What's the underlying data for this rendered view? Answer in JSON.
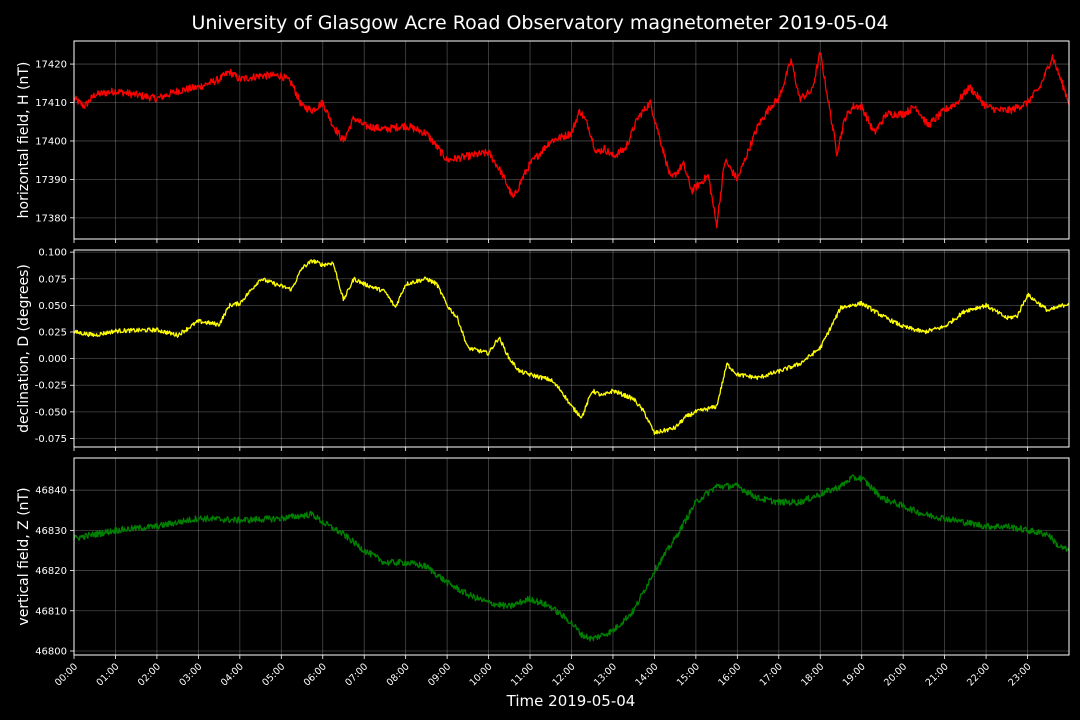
{
  "title": "University of Glasgow Acre Road Observatory magnetometer 2019-05-04",
  "chart_data": [
    {
      "type": "line",
      "ylabel": "horizontal field, H (nT)",
      "xlim": [
        0,
        24
      ],
      "ylim": [
        17374.5,
        17426
      ],
      "yticks": [
        17380,
        17390,
        17400,
        17410,
        17420
      ],
      "tick_decimals": 0,
      "grid": true,
      "series": [
        {
          "color": "#ff0000",
          "noise": 1.0,
          "x": [
            0.0,
            0.25,
            0.5,
            1.0,
            1.5,
            2.0,
            2.5,
            3.0,
            3.5,
            3.75,
            4.0,
            4.5,
            5.0,
            5.25,
            5.5,
            5.75,
            6.0,
            6.25,
            6.5,
            6.75,
            7.0,
            7.5,
            8.0,
            8.5,
            9.0,
            9.5,
            10.0,
            10.3,
            10.6,
            10.8,
            11.0,
            11.5,
            12.0,
            12.2,
            12.4,
            12.6,
            12.8,
            13.0,
            13.3,
            13.6,
            13.9,
            14.1,
            14.4,
            14.7,
            14.9,
            15.1,
            15.3,
            15.5,
            15.7,
            16.0,
            16.5,
            16.8,
            17.0,
            17.3,
            17.5,
            17.8,
            18.0,
            18.2,
            18.4,
            18.6,
            18.8,
            19.0,
            19.3,
            19.6,
            20.0,
            20.3,
            20.6,
            21.0,
            21.3,
            21.6,
            22.0,
            22.3,
            22.6,
            23.0,
            23.3,
            23.6,
            24.0
          ],
          "y": [
            17411,
            17409,
            17412,
            17413,
            17412,
            17411,
            17413,
            17414,
            17416,
            17418,
            17416,
            17417,
            17417,
            17415,
            17409,
            17408,
            17410,
            17404,
            17400,
            17406,
            17404,
            17403,
            17404,
            17402,
            17395,
            17396,
            17397,
            17392,
            17385,
            17390,
            17394,
            17400,
            17402,
            17408,
            17404,
            17397,
            17398,
            17396,
            17398,
            17406,
            17410,
            17402,
            17390,
            17394,
            17387,
            17389,
            17391,
            17378,
            17395,
            17390,
            17404,
            17409,
            17411,
            17421,
            17411,
            17413,
            17423,
            17410,
            17397,
            17406,
            17409,
            17409,
            17402,
            17407,
            17407,
            17409,
            17404,
            17408,
            17410,
            17414,
            17409,
            17408,
            17408,
            17410,
            17414,
            17422,
            17410
          ]
        }
      ]
    },
    {
      "type": "line",
      "ylabel": "declination, D (degrees)",
      "xlim": [
        0,
        24
      ],
      "ylim": [
        -0.083,
        0.102
      ],
      "yticks": [
        -0.075,
        -0.05,
        -0.025,
        0.0,
        0.025,
        0.05,
        0.075,
        0.1
      ],
      "tick_decimals": 3,
      "grid": true,
      "series": [
        {
          "color": "#ffff00",
          "noise": 0.002,
          "x": [
            0.0,
            0.5,
            1.0,
            2.0,
            2.5,
            3.0,
            3.5,
            3.75,
            4.0,
            4.5,
            5.0,
            5.25,
            5.5,
            5.75,
            6.0,
            6.25,
            6.5,
            6.75,
            7.0,
            7.5,
            7.75,
            8.0,
            8.5,
            8.75,
            9.0,
            9.25,
            9.5,
            10.0,
            10.25,
            10.5,
            10.75,
            11.0,
            11.5,
            11.75,
            12.0,
            12.25,
            12.5,
            12.75,
            13.0,
            13.5,
            13.75,
            14.0,
            14.5,
            14.75,
            15.0,
            15.5,
            15.75,
            16.0,
            16.5,
            17.0,
            17.5,
            18.0,
            18.5,
            18.75,
            19.0,
            19.5,
            20.0,
            20.5,
            21.0,
            21.5,
            22.0,
            22.5,
            22.75,
            23.0,
            23.5,
            24.0
          ],
          "y": [
            0.025,
            0.022,
            0.026,
            0.027,
            0.022,
            0.035,
            0.032,
            0.05,
            0.052,
            0.075,
            0.068,
            0.065,
            0.085,
            0.092,
            0.088,
            0.09,
            0.055,
            0.075,
            0.07,
            0.063,
            0.048,
            0.07,
            0.075,
            0.07,
            0.05,
            0.038,
            0.01,
            0.005,
            0.02,
            0.0,
            -0.012,
            -0.015,
            -0.02,
            -0.03,
            -0.045,
            -0.055,
            -0.03,
            -0.035,
            -0.03,
            -0.038,
            -0.05,
            -0.07,
            -0.065,
            -0.055,
            -0.05,
            -0.045,
            -0.005,
            -0.015,
            -0.018,
            -0.012,
            -0.005,
            0.01,
            0.048,
            0.05,
            0.052,
            0.04,
            0.03,
            0.025,
            0.03,
            0.045,
            0.05,
            0.038,
            0.04,
            0.06,
            0.045,
            0.052
          ]
        }
      ]
    },
    {
      "type": "line",
      "ylabel": "vertical field, Z (nT)",
      "xlim": [
        0,
        24
      ],
      "ylim": [
        46799,
        46848
      ],
      "yticks": [
        46800,
        46810,
        46820,
        46830,
        46840
      ],
      "tick_decimals": 0,
      "grid": true,
      "series": [
        {
          "color": "#008000",
          "noise": 0.8,
          "x": [
            0.0,
            0.25,
            1.0,
            2.0,
            3.0,
            4.0,
            5.0,
            5.75,
            6.0,
            6.5,
            7.0,
            7.5,
            8.0,
            8.5,
            9.0,
            9.5,
            10.0,
            10.5,
            11.0,
            11.5,
            12.0,
            12.25,
            12.5,
            13.0,
            13.5,
            14.0,
            14.5,
            15.0,
            15.5,
            16.0,
            16.5,
            17.0,
            17.5,
            18.0,
            18.5,
            18.75,
            19.0,
            19.5,
            20.0,
            20.5,
            21.0,
            21.5,
            22.0,
            22.5,
            23.0,
            23.5,
            23.75,
            24.0
          ],
          "y": [
            46828,
            46828.5,
            46830,
            46831,
            46833,
            46832.5,
            46833,
            46834,
            46832,
            46829,
            46825,
            46822,
            46822,
            46821,
            46817,
            46814,
            46812,
            46811,
            46813,
            46811,
            46807,
            46804,
            46803,
            46805,
            46810,
            46820,
            46828,
            46837,
            46841,
            46841,
            46838,
            46837,
            46837,
            46839,
            46841,
            46843,
            46843,
            46838,
            46836,
            46834,
            46833,
            46832,
            46831,
            46831,
            46830,
            46829,
            46826,
            46825
          ]
        }
      ]
    }
  ],
  "xticks": [
    "00:00",
    "01:00",
    "02:00",
    "03:00",
    "04:00",
    "05:00",
    "06:00",
    "07:00",
    "08:00",
    "09:00",
    "10:00",
    "11:00",
    "12:00",
    "13:00",
    "14:00",
    "15:00",
    "16:00",
    "17:00",
    "18:00",
    "19:00",
    "20:00",
    "21:00",
    "22:00",
    "23:00"
  ],
  "xlabel": "Time 2019-05-04"
}
